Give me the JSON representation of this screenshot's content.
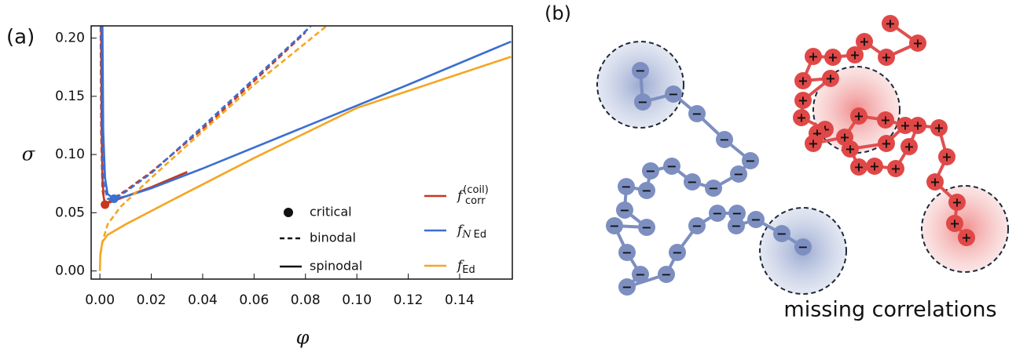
{
  "chart_data": {
    "type": "line",
    "panel_label": "(a)",
    "x_label": "φ",
    "y_label": "σ",
    "xlim": [
      -0.0034,
      0.1605
    ],
    "ylim": [
      -0.007,
      0.2105
    ],
    "xticks": [
      {
        "value": 0,
        "label": "0.00"
      },
      {
        "value": 0.02,
        "label": "0.02"
      },
      {
        "value": 0.04,
        "label": "0.04"
      },
      {
        "value": 0.06,
        "label": "0.06"
      },
      {
        "value": 0.08,
        "label": "0.08"
      },
      {
        "value": 0.1,
        "label": "0.10"
      },
      {
        "value": 0.12,
        "label": "0.12"
      },
      {
        "value": 0.14,
        "label": "0.14"
      }
    ],
    "yticks": [
      {
        "value": 0,
        "label": "0.00"
      },
      {
        "value": 0.05,
        "label": "0.05"
      },
      {
        "value": 0.1,
        "label": "0.10"
      },
      {
        "value": 0.15,
        "label": "0.15"
      },
      {
        "value": 0.2,
        "label": "0.20"
      }
    ],
    "legend_styles": {
      "critical": "critical",
      "binodal": "binodal",
      "spinodal": "spinodal"
    },
    "series": [
      {
        "name": "f",
        "name_sub": "corr",
        "name_sup": "(coil)",
        "color": "#c8361e",
        "critical": {
          "x": 0.002,
          "y": 0.057
        },
        "binodal": {
          "x": [
            0.0003,
            0.0005,
            0.001,
            0.002,
            0.005,
            0.01,
            0.02,
            0.04,
            0.06,
            0.08
          ],
          "values": [
            0.21,
            0.12,
            0.07,
            0.057,
            0.062,
            0.069,
            0.085,
            0.122,
            0.163,
            0.205
          ]
        },
        "spinodal": {
          "x": [
            0.0005,
            0.0007,
            0.001,
            0.0015,
            0.002,
            0.004,
            0.01,
            0.02,
            0.034
          ],
          "values": [
            0.21,
            0.12,
            0.08,
            0.063,
            0.058,
            0.059,
            0.064,
            0.072,
            0.085
          ]
        }
      },
      {
        "name": "f",
        "name_sub_italic": "N",
        "name_sub": "Ed",
        "color": "#3a6fd0",
        "critical": {
          "x": 0.0055,
          "y": 0.062
        },
        "binodal": {
          "x": [
            0.0005,
            0.0008,
            0.0015,
            0.003,
            0.0055,
            0.01,
            0.02,
            0.04,
            0.06,
            0.082
          ],
          "values": [
            0.21,
            0.12,
            0.075,
            0.062,
            0.062,
            0.068,
            0.084,
            0.124,
            0.165,
            0.21
          ]
        },
        "spinodal": {
          "x": [
            0.001,
            0.0013,
            0.002,
            0.003,
            0.0055,
            0.01,
            0.02,
            0.04,
            0.08,
            0.12,
            0.16
          ],
          "values": [
            0.21,
            0.12,
            0.08,
            0.066,
            0.062,
            0.064,
            0.071,
            0.088,
            0.124,
            0.16,
            0.197
          ]
        }
      },
      {
        "name": "f",
        "name_sub": "Ed",
        "color": "#f5a623",
        "binodal": {
          "x": [
            0.0003,
            0.001,
            0.003,
            0.008,
            0.02,
            0.04,
            0.06,
            0.088
          ],
          "values": [
            0.015,
            0.025,
            0.04,
            0.055,
            0.08,
            0.12,
            0.16,
            0.21
          ]
        },
        "spinodal": {
          "x": [
            0,
            0.0002,
            0.001,
            0.003,
            0.01,
            0.03,
            0.06,
            0.1,
            0.16
          ],
          "values": [
            0,
            0.015,
            0.025,
            0.031,
            0.04,
            0.063,
            0.097,
            0.14,
            0.184
          ]
        }
      }
    ]
  },
  "diagram": {
    "panel_label": "(b)",
    "caption": "missing correlations",
    "negative_sign": "−",
    "positive_sign": "+"
  }
}
